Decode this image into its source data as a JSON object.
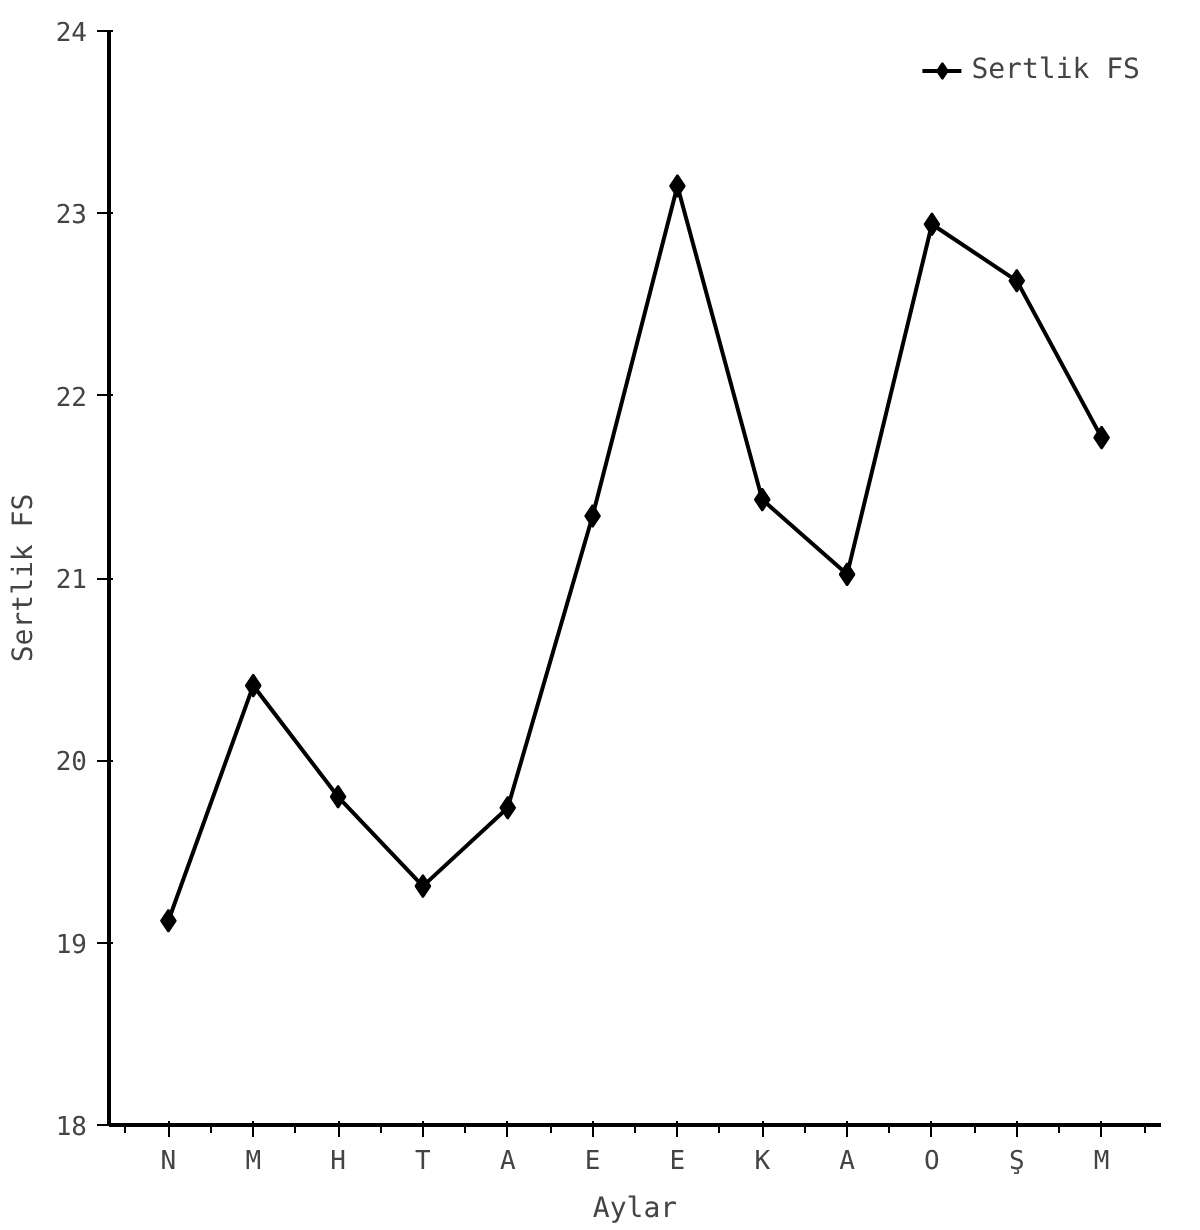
{
  "chart_data": {
    "type": "line",
    "xlabel": "Aylar",
    "ylabel": "Sertlik FS",
    "categories": [
      "N",
      "M",
      "H",
      "T",
      "A",
      "E",
      "E",
      "K",
      "A",
      "O",
      "Ş",
      "M"
    ],
    "series": [
      {
        "name": "Sertlik FS",
        "color": "#000000",
        "values": [
          19.12,
          20.41,
          19.8,
          19.31,
          19.74,
          21.34,
          23.15,
          21.43,
          21.02,
          22.94,
          22.63,
          21.77
        ]
      }
    ],
    "ylim": [
      18,
      24
    ],
    "yticks": [
      18,
      19,
      20,
      21,
      22,
      23,
      24
    ],
    "marker": "diamond",
    "line_style": "solid",
    "legend": "top right",
    "grid": false
  }
}
